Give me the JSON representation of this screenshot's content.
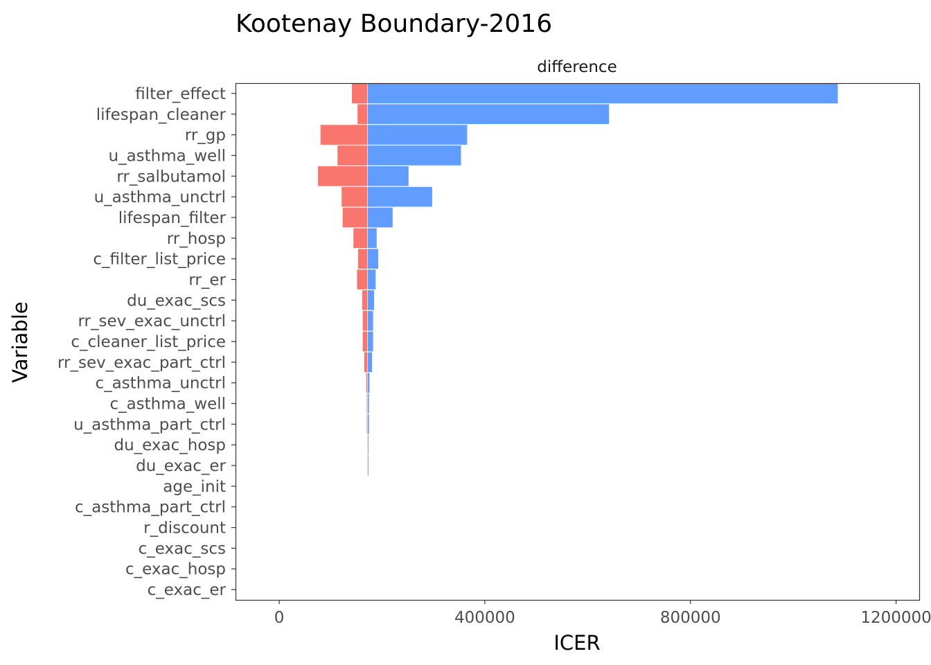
{
  "chart_data": {
    "type": "bar",
    "orientation": "horizontal",
    "title": "Kootenay Boundary-2016",
    "facet_label": "difference",
    "xlabel": "ICER",
    "ylabel": "Variable",
    "base_value": 172000,
    "xlim": [
      -85000,
      1245000
    ],
    "x_ticks": [
      0,
      400000,
      800000,
      1200000
    ],
    "x_tick_labels": [
      "0",
      "400000",
      "800000",
      "1200000"
    ],
    "grid": false,
    "legend": "none",
    "colors": {
      "low": "#F8766D",
      "high": "#619CFF",
      "panel_border": "#333333"
    },
    "categories": [
      "filter_effect",
      "lifespan_cleaner",
      "rr_gp",
      "u_asthma_well",
      "rr_salbutamol",
      "u_asthma_unctrl",
      "lifespan_filter",
      "rr_hosp",
      "c_filter_list_price",
      "rr_er",
      "du_exac_scs",
      "rr_sev_exac_unctrl",
      "c_cleaner_list_price",
      "rr_sev_exac_part_ctrl",
      "c_asthma_unctrl",
      "c_asthma_well",
      "u_asthma_part_ctrl",
      "du_exac_hosp",
      "du_exac_er",
      "age_init",
      "c_asthma_part_ctrl",
      "r_discount",
      "c_exac_scs",
      "c_exac_hosp",
      "c_exac_er"
    ],
    "series": [
      {
        "name": "low",
        "values": [
          141000,
          152000,
          80000,
          113000,
          75000,
          121000,
          123000,
          144000,
          153000,
          151000,
          161000,
          162000,
          162000,
          165000,
          169000,
          170000,
          170000,
          171000,
          171000,
          172000,
          172000,
          172000,
          172000,
          172000,
          172000
        ]
      },
      {
        "name": "high",
        "values": [
          1087000,
          642000,
          366000,
          354000,
          252000,
          298000,
          221000,
          190000,
          193000,
          188000,
          185000,
          183000,
          183000,
          181000,
          176000,
          175000,
          175000,
          174000,
          174000,
          172500,
          172500,
          172500,
          172000,
          172000,
          172000
        ]
      }
    ]
  }
}
